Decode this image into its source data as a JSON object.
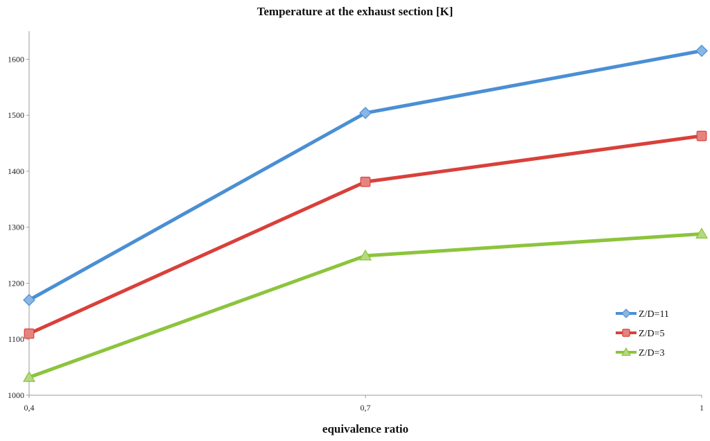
{
  "chart_data": {
    "type": "line",
    "title": "Temperature at the exhaust section [K]",
    "xlabel": "equivalence ratio",
    "ylabel": "",
    "categories": [
      "0,4",
      "0,7",
      "1"
    ],
    "x": [
      0.4,
      0.7,
      1.0
    ],
    "ylim": [
      1000,
      1650
    ],
    "yticks": [
      1000,
      1100,
      1200,
      1300,
      1400,
      1500,
      1600
    ],
    "grid": false,
    "legend_position": "bottom-right",
    "series": [
      {
        "name": "Z/D=11",
        "color": "#4a8fd4",
        "marker": "diamond",
        "values": [
          1170,
          1504,
          1615
        ]
      },
      {
        "name": "Z/D=5",
        "color": "#d9403a",
        "marker": "square",
        "values": [
          1110,
          1381,
          1463
        ]
      },
      {
        "name": "Z/D=3",
        "color": "#8cc43c",
        "marker": "triangle",
        "values": [
          1032,
          1249,
          1288
        ]
      }
    ]
  }
}
